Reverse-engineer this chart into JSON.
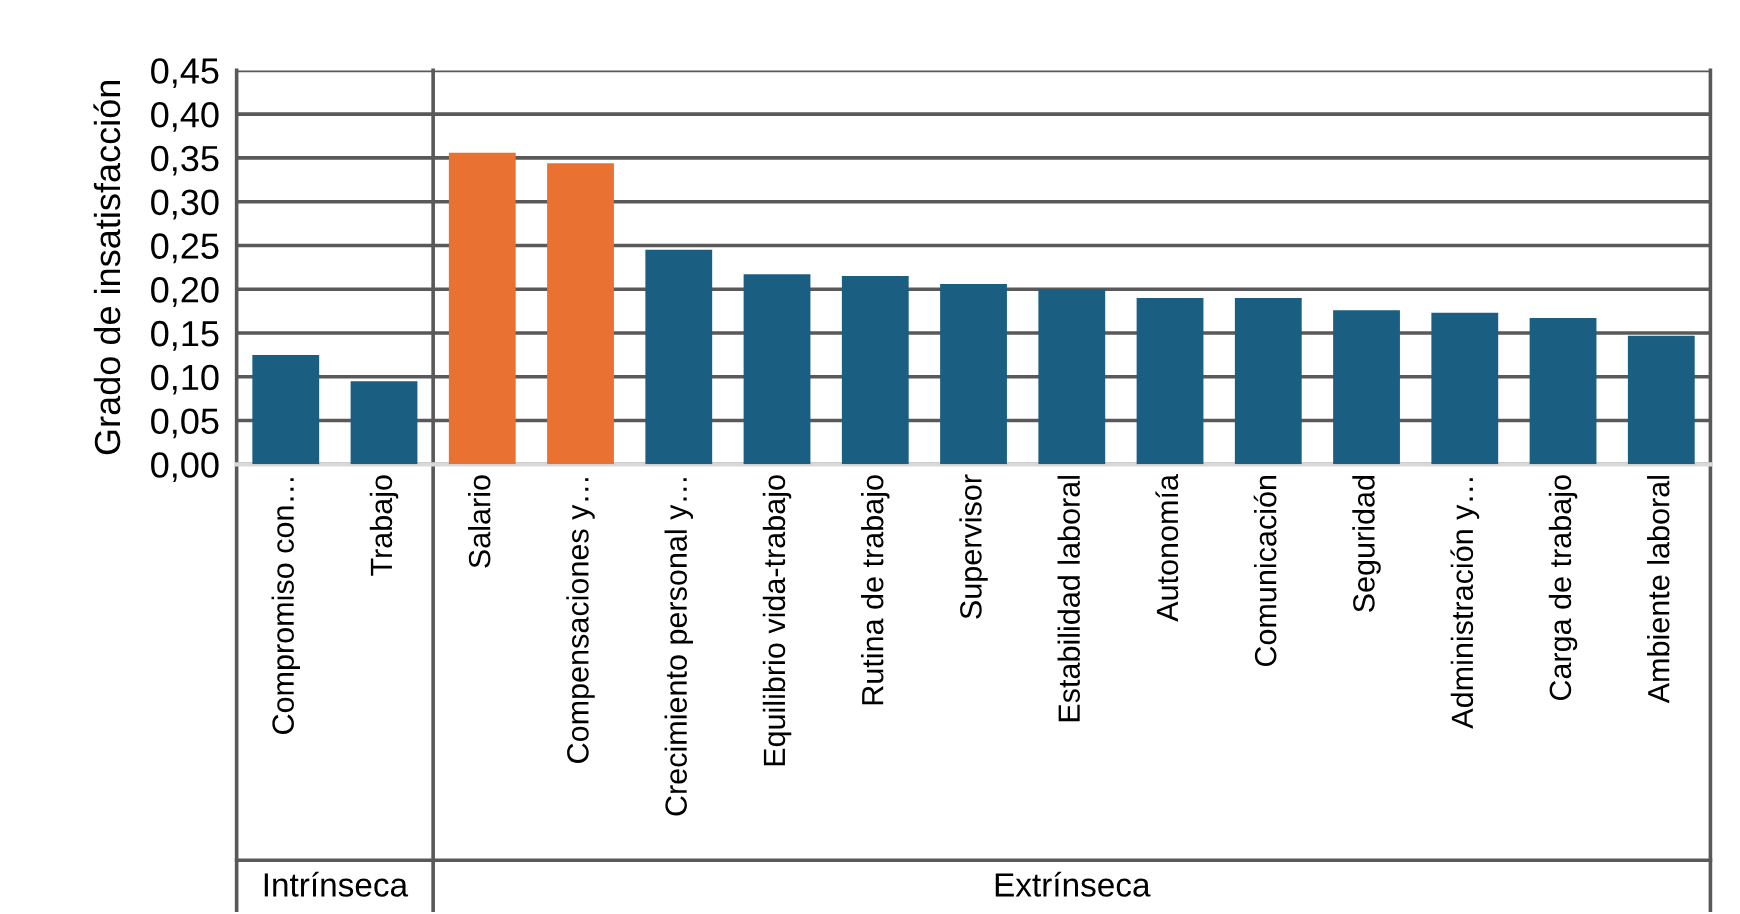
{
  "chart_data": {
    "type": "bar",
    "ylabel": "Grado de insatisfacción",
    "categories": [
      "Compromiso con…",
      "Trabajo",
      "Salario",
      "Compensaciones y…",
      "Crecimiento personal y…",
      "Equilibrio vida-trabajo",
      "Rutina de trabajo",
      "Supervisor",
      "Estabilidad laboral",
      "Autonomía",
      "Comunicación",
      "Seguridad",
      "Administración y…",
      "Carga de trabajo",
      "Ambiente laboral"
    ],
    "values": [
      0.125,
      0.095,
      0.356,
      0.344,
      0.245,
      0.217,
      0.215,
      0.206,
      0.2,
      0.19,
      0.19,
      0.176,
      0.173,
      0.167,
      0.147
    ],
    "colors": [
      "#1a5f82",
      "#1a5f82",
      "#e97132",
      "#e97132",
      "#1a5f82",
      "#1a5f82",
      "#1a5f82",
      "#1a5f82",
      "#1a5f82",
      "#1a5f82",
      "#1a5f82",
      "#1a5f82",
      "#1a5f82",
      "#1a5f82",
      "#1a5f82"
    ],
    "ylim": [
      0,
      0.45
    ],
    "yticks": [
      {
        "value": 0,
        "label": "0,00"
      },
      {
        "value": 0.05,
        "label": "0,05"
      },
      {
        "value": 0.1,
        "label": "0,10"
      },
      {
        "value": 0.15,
        "label": "0,15"
      },
      {
        "value": 0.2,
        "label": "0,20"
      },
      {
        "value": 0.25,
        "label": "0,25"
      },
      {
        "value": 0.3,
        "label": "0,30"
      },
      {
        "value": 0.35,
        "label": "0,35"
      },
      {
        "value": 0.4,
        "label": "0,40"
      },
      {
        "value": 0.45,
        "label": "0,45"
      }
    ],
    "grid": "y",
    "annotations": [
      "Intrínseca",
      "Extrínseca"
    ]
  }
}
